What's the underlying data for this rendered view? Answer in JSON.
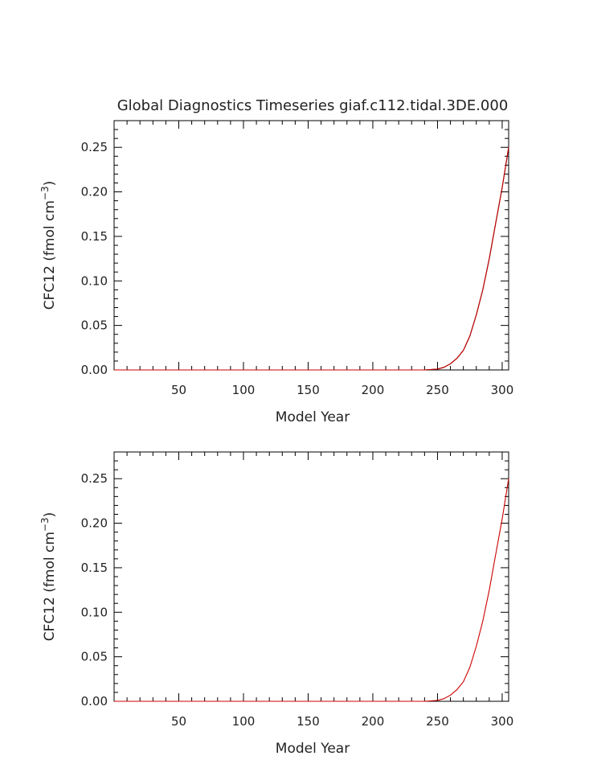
{
  "chart_data": [
    {
      "type": "line",
      "title": "Global Diagnostics Timeseries giaf.c112.tidal.3DE.000",
      "xlabel": "Model Year",
      "ylabel_main": "CFC12  (fmol cm",
      "ylabel_exp": "−3",
      "ylabel_close": ")",
      "xlim": [
        0,
        305
      ],
      "ylim": [
        0,
        0.28
      ],
      "xticks": [
        50,
        100,
        150,
        200,
        250,
        300
      ],
      "xtick_labels": [
        "50",
        "100",
        "150",
        "200",
        "250",
        "300"
      ],
      "yticks": [
        0,
        0.05,
        0.1,
        0.15,
        0.2,
        0.25
      ],
      "ytick_labels": [
        "0.00",
        "0.05",
        "0.10",
        "0.15",
        "0.20",
        "0.25"
      ],
      "grid": false,
      "series": [
        {
          "color": "#000000",
          "x": [
            0,
            50,
            100,
            150,
            200,
            240,
            250,
            255,
            260,
            265,
            270,
            275,
            280,
            285,
            290,
            295,
            300,
            305
          ],
          "y": [
            0,
            0,
            0,
            0,
            0,
            0,
            0.001,
            0.003,
            0.007,
            0.013,
            0.022,
            0.038,
            0.062,
            0.09,
            0.125,
            0.165,
            0.205,
            0.25
          ]
        },
        {
          "color": "#cc0000",
          "x": [
            0,
            50,
            100,
            150,
            200,
            240,
            250,
            255,
            260,
            265,
            270,
            275,
            280,
            285,
            290,
            295,
            300,
            305
          ],
          "y": [
            0,
            0,
            0,
            0,
            0,
            0,
            0.001,
            0.003,
            0.007,
            0.013,
            0.022,
            0.038,
            0.062,
            0.09,
            0.125,
            0.165,
            0.205,
            0.25
          ]
        }
      ]
    },
    {
      "type": "line",
      "title": "",
      "xlabel": "Model Year",
      "ylabel_main": "CFC12  (fmol cm",
      "ylabel_exp": "−3",
      "ylabel_close": ")",
      "xlim": [
        0,
        305
      ],
      "ylim": [
        0,
        0.28
      ],
      "xticks": [
        50,
        100,
        150,
        200,
        250,
        300
      ],
      "xtick_labels": [
        "50",
        "100",
        "150",
        "200",
        "250",
        "300"
      ],
      "yticks": [
        0,
        0.05,
        0.1,
        0.15,
        0.2,
        0.25
      ],
      "ytick_labels": [
        "0.00",
        "0.05",
        "0.10",
        "0.15",
        "0.20",
        "0.25"
      ],
      "grid": false,
      "series": [
        {
          "color": "#cc0000",
          "x": [
            0,
            50,
            100,
            150,
            200,
            240,
            250,
            255,
            260,
            265,
            270,
            275,
            280,
            285,
            290,
            295,
            300,
            305
          ],
          "y": [
            0,
            0,
            0,
            0,
            0,
            0,
            0.001,
            0.003,
            0.007,
            0.013,
            0.022,
            0.038,
            0.062,
            0.09,
            0.125,
            0.165,
            0.205,
            0.25
          ]
        }
      ]
    }
  ]
}
